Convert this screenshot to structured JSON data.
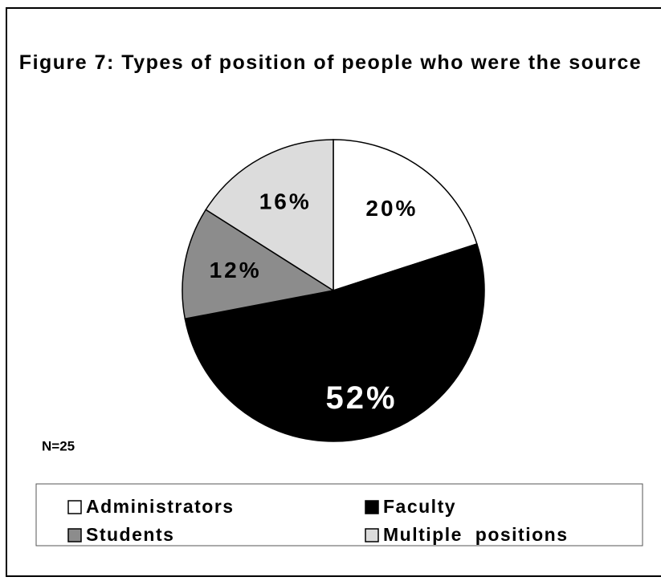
{
  "chart_data": {
    "type": "pie",
    "title": "Figure 7: Types of position of people who were the source",
    "categories": [
      "Administrators",
      "Faculty",
      "Students",
      "Multiple positions"
    ],
    "values": [
      20,
      52,
      12,
      16
    ],
    "value_labels": [
      "20%",
      "52%",
      "12%",
      "16%"
    ],
    "colors": [
      "#ffffff",
      "#000000",
      "#8c8c8c",
      "#dcdcdc"
    ],
    "annotation": "N=25",
    "legend": "bottom"
  }
}
